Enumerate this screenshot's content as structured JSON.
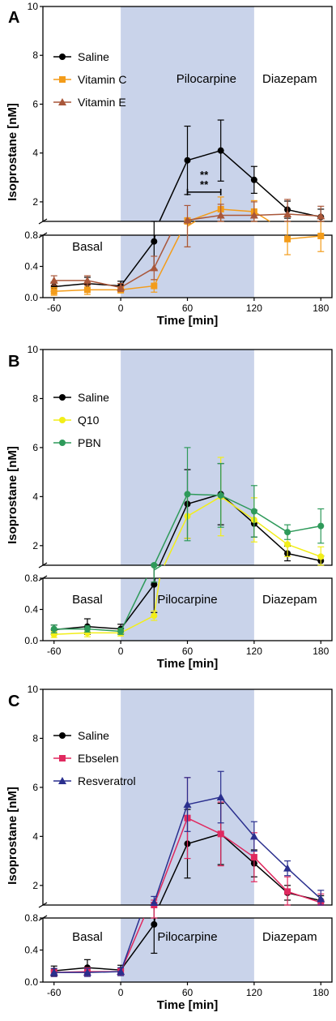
{
  "chart_data": [
    {
      "type": "line",
      "panel_label": "A",
      "ylabel": "Isoprostane [nM]",
      "xlabel": "Time [min]",
      "x_ticks": [
        "-60",
        "0",
        "60",
        "120",
        "180"
      ],
      "y_upper_ticks": [
        "2",
        "4",
        "6",
        "8",
        "10"
      ],
      "y_lower_ticks": [
        "0.0",
        "0.4",
        "0.8"
      ],
      "y_break": 0.8,
      "ylim_upper": [
        1.2,
        10
      ],
      "ylim_lower": [
        0,
        0.8
      ],
      "xlim": [
        -70,
        190
      ],
      "shaded_region": [
        0,
        120
      ],
      "annotations": {
        "basal": "Basal",
        "pilocarpine": "Pilocarpine",
        "diazepam": "Diazepam"
      },
      "significance": {
        "marks": [
          "**",
          "**"
        ],
        "x_range": [
          60,
          90
        ]
      },
      "legend": "top-left",
      "series": [
        {
          "name": "Saline",
          "color": "#000000",
          "marker": "circle",
          "x": [
            -60,
            -30,
            0,
            30,
            60,
            90,
            120,
            150,
            180
          ],
          "y": [
            0.14,
            0.18,
            0.15,
            0.72,
            3.7,
            4.1,
            2.9,
            1.68,
            1.38
          ],
          "err": [
            0.06,
            0.08,
            0.06,
            0.36,
            1.4,
            1.25,
            0.55,
            0.35,
            0.32
          ]
        },
        {
          "name": "Vitamin C",
          "color": "#F39C1A",
          "marker": "square",
          "x": [
            -60,
            -30,
            0,
            30,
            60,
            90,
            120,
            150,
            180
          ],
          "y": [
            0.08,
            0.1,
            0.1,
            0.15,
            1.0,
            1.7,
            1.6,
            0.75,
            0.79
          ],
          "err": [
            0.05,
            0.06,
            0.04,
            0.08,
            0.35,
            0.5,
            0.45,
            0.2,
            0.2
          ]
        },
        {
          "name": "Vitamin E",
          "color": "#A9573A",
          "marker": "triangle",
          "x": [
            -60,
            -30,
            0,
            30,
            60,
            90,
            120,
            150,
            180
          ],
          "y": [
            0.22,
            0.22,
            0.13,
            0.38,
            1.25,
            1.45,
            1.45,
            1.5,
            1.42
          ],
          "err": [
            0.06,
            0.06,
            0.05,
            0.15,
            0.6,
            0.45,
            0.55,
            0.6,
            0.4
          ]
        }
      ]
    },
    {
      "type": "line",
      "panel_label": "B",
      "ylabel": "Isoprostane [nM]",
      "xlabel": "Time [min]",
      "x_ticks": [
        "-60",
        "0",
        "60",
        "120",
        "180"
      ],
      "y_upper_ticks": [
        "2",
        "4",
        "6",
        "8",
        "10"
      ],
      "y_lower_ticks": [
        "0.0",
        "0.4",
        "0.8"
      ],
      "y_break": 0.8,
      "ylim_upper": [
        1.2,
        10
      ],
      "ylim_lower": [
        0,
        0.8
      ],
      "xlim": [
        -70,
        190
      ],
      "shaded_region": [
        0,
        120
      ],
      "annotations": {
        "basal": "Basal",
        "pilocarpine": "Pilocarpine",
        "diazepam": "Diazepam"
      },
      "legend": "top-left",
      "series": [
        {
          "name": "Saline",
          "color": "#000000",
          "marker": "circle",
          "x": [
            -60,
            -30,
            0,
            30,
            60,
            90,
            120,
            150,
            180
          ],
          "y": [
            0.14,
            0.18,
            0.15,
            0.72,
            3.7,
            4.1,
            2.9,
            1.68,
            1.38
          ],
          "err": [
            0.06,
            0.1,
            0.06,
            0.36,
            1.4,
            1.25,
            0.55,
            0.3,
            0.2
          ]
        },
        {
          "name": "Q10",
          "color": "#F2EE18",
          "marker": "circle",
          "x": [
            -60,
            -30,
            0,
            30,
            60,
            90,
            120,
            150,
            180
          ],
          "y": [
            0.08,
            0.1,
            0.1,
            0.32,
            3.2,
            4.0,
            3.05,
            2.05,
            1.55
          ],
          "err": [
            0.04,
            0.05,
            0.04,
            0.06,
            0.9,
            1.6,
            0.9,
            0.5,
            0.4
          ]
        },
        {
          "name": "PBN",
          "color": "#2E9A5A",
          "marker": "circle",
          "x": [
            -60,
            -30,
            0,
            30,
            60,
            90,
            120,
            150,
            180
          ],
          "y": [
            0.15,
            0.15,
            0.12,
            1.0,
            4.1,
            4.05,
            3.4,
            2.55,
            2.8
          ],
          "err": [
            0.05,
            0.04,
            0.04,
            0.25,
            1.9,
            1.3,
            1.05,
            0.3,
            0.7
          ]
        }
      ]
    },
    {
      "type": "line",
      "panel_label": "C",
      "ylabel": "Isoprostane [nM]",
      "xlabel": "Time [min]",
      "x_ticks": [
        "-60",
        "0",
        "60",
        "120",
        "180"
      ],
      "y_upper_ticks": [
        "2",
        "4",
        "6",
        "8",
        "10"
      ],
      "y_lower_ticks": [
        "0.0",
        "0.4",
        "0.8"
      ],
      "y_break": 0.8,
      "ylim_upper": [
        1.2,
        10
      ],
      "ylim_lower": [
        0,
        0.8
      ],
      "xlim": [
        -70,
        190
      ],
      "shaded_region": [
        0,
        120
      ],
      "annotations": {
        "basal": "Basal",
        "pilocarpine": "Pilocarpine",
        "diazepam": "Diazepam"
      },
      "legend": "top-left",
      "series": [
        {
          "name": "Saline",
          "color": "#000000",
          "marker": "circle",
          "x": [
            -60,
            -30,
            0,
            30,
            60,
            90,
            120,
            150,
            180
          ],
          "y": [
            0.14,
            0.18,
            0.15,
            0.72,
            3.7,
            4.1,
            2.9,
            1.7,
            1.38
          ],
          "err": [
            0.06,
            0.1,
            0.06,
            0.36,
            1.4,
            1.25,
            0.55,
            0.3,
            0.2
          ]
        },
        {
          "name": "Ebselen",
          "color": "#E0295F",
          "marker": "square",
          "x": [
            -60,
            -30,
            0,
            30,
            60,
            90,
            120,
            150,
            180
          ],
          "y": [
            0.12,
            0.13,
            0.13,
            1.1,
            4.75,
            4.1,
            3.15,
            1.75,
            1.3
          ],
          "err": [
            0.05,
            0.05,
            0.04,
            0.3,
            1.65,
            1.3,
            1.0,
            0.6,
            0.35
          ]
        },
        {
          "name": "Resveratrol",
          "color": "#2A2F8E",
          "marker": "triangle",
          "x": [
            -60,
            -30,
            0,
            30,
            60,
            90,
            120,
            150,
            180
          ],
          "y": [
            0.12,
            0.12,
            0.13,
            1.3,
            5.3,
            5.6,
            4.0,
            2.7,
            1.45
          ],
          "err": [
            0.05,
            0.05,
            0.05,
            0.25,
            1.1,
            1.05,
            0.6,
            0.3,
            0.35
          ]
        }
      ]
    }
  ]
}
